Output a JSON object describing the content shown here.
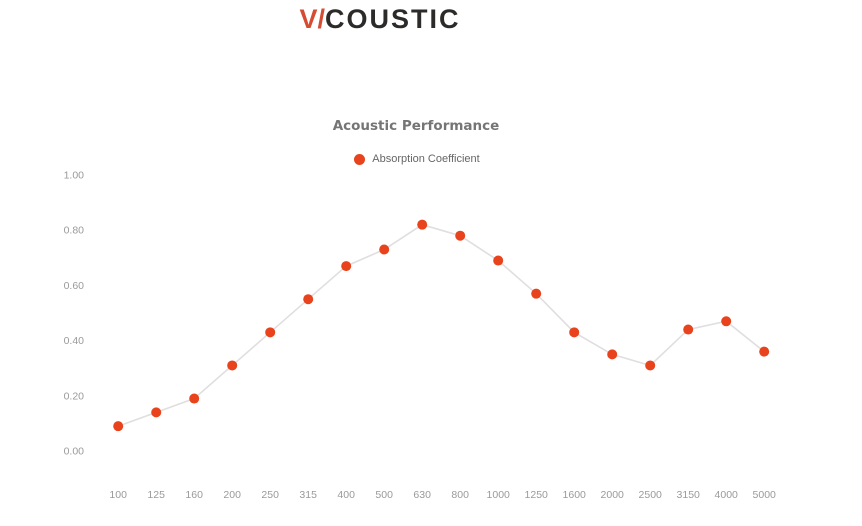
{
  "logo": {
    "prefix": "V/",
    "rest": "COUSTIC",
    "prefix_color": "#d54c33",
    "text_color": "#2d2b2a"
  },
  "chart_data": {
    "type": "line",
    "title": "Acoustic Performance",
    "title_color": "#757575",
    "legend": [
      {
        "label": "Absorption Coefficient",
        "color": "#e8431d"
      }
    ],
    "legend_position": "top",
    "legend_text_color": "#666666",
    "categories": [
      "100",
      "125",
      "160",
      "200",
      "250",
      "315",
      "400",
      "500",
      "630",
      "800",
      "1000",
      "1250",
      "1600",
      "2000",
      "2500",
      "3150",
      "4000",
      "5000"
    ],
    "series": [
      {
        "name": "Absorption Coefficient",
        "values": [
          0.09,
          0.14,
          0.19,
          0.31,
          0.43,
          0.55,
          0.67,
          0.73,
          0.82,
          0.78,
          0.69,
          0.57,
          0.43,
          0.35,
          0.31,
          0.44,
          0.47,
          0.36
        ]
      }
    ],
    "xlabel": "",
    "ylabel": "",
    "ylim": [
      0,
      1.0
    ],
    "yticks": [
      "0.00",
      "0.20",
      "0.40",
      "0.60",
      "0.80",
      "1.00"
    ],
    "grid": false,
    "line_color": "#e0dede",
    "point_color": "#e8431d",
    "axis_label_color": "#9a9a9a"
  }
}
